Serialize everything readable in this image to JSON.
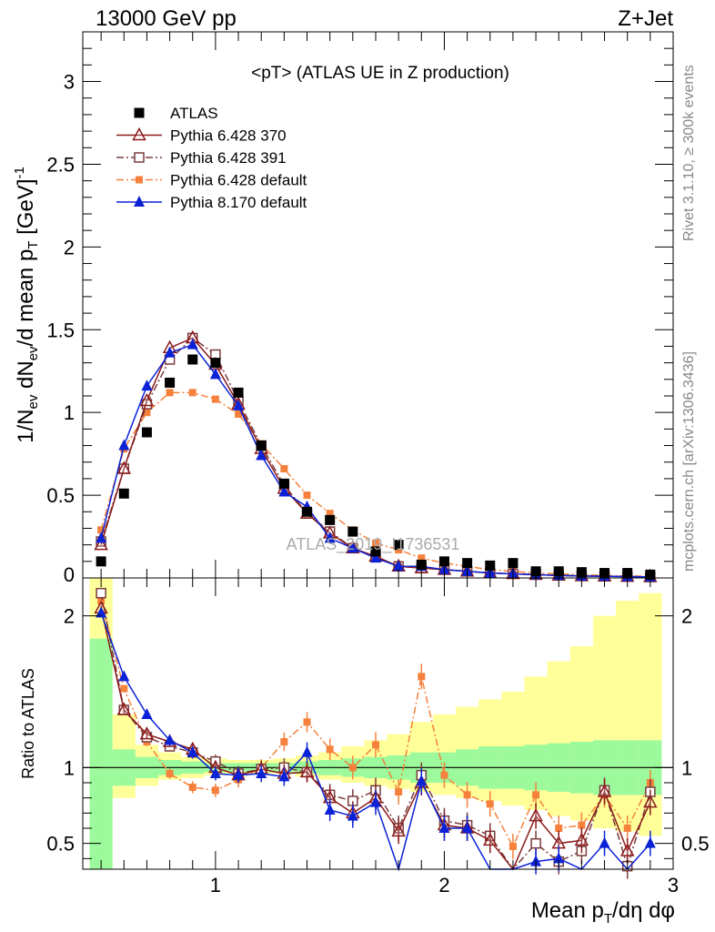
{
  "header": {
    "left": "13000 GeV pp",
    "right": "Z+Jet"
  },
  "side": {
    "rivet": "Rivet 3.1.10, ≥ 300k events",
    "mcplots": "mcplots.cern.ch [arXiv:1306.3436]"
  },
  "watermark": "ATLAS_2019_I1736531",
  "chart_data": [
    {
      "type": "scatter",
      "title": "<pT> (ATLAS UE in Z production)",
      "xlabel": "Mean p_T/dη dφ",
      "ylabel": "1/N_ev dN_ev/d mean p_T [GeV]^-1",
      "xlim": [
        0.42,
        3.0
      ],
      "ylim": [
        0,
        3.3
      ],
      "x_ticks": [
        "1",
        "2",
        "3"
      ],
      "y_ticks": [
        "0",
        "0.5",
        "1",
        "1.5",
        "2",
        "2.5",
        "3"
      ],
      "legend_position": "top-left",
      "x": [
        0.5,
        0.6,
        0.7,
        0.8,
        0.9,
        1.0,
        1.1,
        1.2,
        1.3,
        1.4,
        1.5,
        1.6,
        1.7,
        1.8,
        1.9,
        2.0,
        2.1,
        2.2,
        2.3,
        2.4,
        2.5,
        2.6,
        2.7,
        2.8,
        2.9
      ],
      "series": [
        {
          "name": "ATLAS",
          "color": "#000000",
          "marker": "square-filled",
          "line": "none",
          "values": [
            0.1,
            0.51,
            0.88,
            1.18,
            1.32,
            1.3,
            1.12,
            0.8,
            0.57,
            0.4,
            0.35,
            0.28,
            0.16,
            0.2,
            0.08,
            0.1,
            0.09,
            0.075,
            0.09,
            0.04,
            0.04,
            0.035,
            0.03,
            0.03,
            0.02
          ]
        },
        {
          "name": "Pythia 6.428 370",
          "color": "#8b1a1a",
          "marker": "triangle-open",
          "line": "solid",
          "values": [
            0.2,
            0.66,
            1.07,
            1.39,
            1.45,
            1.29,
            1.05,
            0.78,
            0.54,
            0.39,
            0.27,
            0.18,
            0.13,
            0.07,
            0.06,
            0.05,
            0.04,
            0.03,
            0.025,
            0.02,
            0.015,
            0.012,
            0.01,
            0.008,
            0.006
          ]
        },
        {
          "name": "Pythia 6.428 391",
          "color": "#7a3b3b",
          "marker": "square-open",
          "line": "dashdot",
          "values": [
            0.22,
            0.66,
            1.05,
            1.32,
            1.45,
            1.35,
            1.07,
            0.8,
            0.56,
            0.39,
            0.28,
            0.18,
            0.13,
            0.07,
            0.06,
            0.05,
            0.04,
            0.03,
            0.025,
            0.02,
            0.015,
            0.012,
            0.01,
            0.008,
            0.006
          ]
        },
        {
          "name": "Pythia 6.428 default",
          "color": "#f5813c",
          "marker": "square-filled-small",
          "line": "dashdot",
          "values": [
            0.29,
            0.78,
            1.0,
            1.12,
            1.12,
            1.08,
            0.99,
            0.81,
            0.66,
            0.5,
            0.39,
            0.29,
            0.21,
            0.17,
            0.12,
            0.09,
            0.07,
            0.05,
            0.04,
            0.03,
            0.025,
            0.02,
            0.015,
            0.012,
            0.01
          ]
        },
        {
          "name": "Pythia 8.170 default",
          "color": "#0b22d6",
          "marker": "triangle-filled",
          "line": "solid",
          "values": [
            0.24,
            0.8,
            1.16,
            1.36,
            1.41,
            1.23,
            1.04,
            0.74,
            0.52,
            0.43,
            0.24,
            0.18,
            0.12,
            0.07,
            0.07,
            0.05,
            0.04,
            0.03,
            0.025,
            0.02,
            0.015,
            0.012,
            0.01,
            0.008,
            0.006
          ]
        }
      ]
    },
    {
      "type": "line",
      "ylabel": "Ratio to ATLAS",
      "xlabel": "Mean p_T/dη dφ",
      "xlim": [
        0.42,
        3.0
      ],
      "ylim": [
        0.33,
        2.25
      ],
      "y_ticks": [
        "0.5",
        "1",
        "2"
      ],
      "x": [
        0.5,
        0.6,
        0.7,
        0.8,
        0.9,
        1.0,
        1.1,
        1.2,
        1.3,
        1.4,
        1.5,
        1.6,
        1.7,
        1.8,
        1.9,
        2.0,
        2.1,
        2.2,
        2.3,
        2.4,
        2.5,
        2.6,
        2.7,
        2.8,
        2.9
      ],
      "band_bins": [
        0.45,
        0.55,
        0.65,
        0.75,
        0.85,
        0.95,
        1.05,
        1.15,
        1.25,
        1.35,
        1.45,
        1.55,
        1.65,
        1.75,
        1.85,
        1.95,
        2.05,
        2.15,
        2.25,
        2.35,
        2.45,
        2.55,
        2.65,
        2.75,
        2.85,
        2.95
      ],
      "stat_band": {
        "color": "#9cfa9c",
        "lo": [
          0.33,
          0.88,
          0.93,
          0.95,
          0.96,
          0.97,
          0.97,
          0.97,
          0.97,
          0.96,
          0.95,
          0.94,
          0.93,
          0.92,
          0.9,
          0.9,
          0.88,
          0.86,
          0.86,
          0.85,
          0.84,
          0.83,
          0.82,
          0.82,
          0.82
        ],
        "hi": [
          1.85,
          1.12,
          1.07,
          1.05,
          1.04,
          1.03,
          1.03,
          1.03,
          1.03,
          1.04,
          1.05,
          1.06,
          1.07,
          1.08,
          1.1,
          1.1,
          1.12,
          1.14,
          1.14,
          1.15,
          1.16,
          1.17,
          1.18,
          1.18,
          1.18
        ]
      },
      "syst_band": {
        "color": "#ffff99",
        "lo": [
          0.33,
          0.8,
          0.88,
          0.92,
          0.93,
          0.95,
          0.96,
          0.96,
          0.96,
          0.94,
          0.92,
          0.9,
          0.88,
          0.86,
          0.84,
          0.82,
          0.8,
          0.78,
          0.75,
          0.72,
          0.68,
          0.65,
          0.6,
          0.58,
          0.55
        ],
        "hi": [
          2.25,
          1.35,
          1.15,
          1.1,
          1.07,
          1.06,
          1.05,
          1.05,
          1.06,
          1.08,
          1.1,
          1.14,
          1.18,
          1.22,
          1.3,
          1.35,
          1.4,
          1.45,
          1.5,
          1.6,
          1.7,
          1.8,
          2.0,
          2.1,
          2.15
        ]
      },
      "series": [
        {
          "name": "Pythia 6.428 370",
          "color": "#8b1a1a",
          "values": [
            2.05,
            1.38,
            1.22,
            1.17,
            1.12,
            1.0,
            0.95,
            0.99,
            0.96,
            0.97,
            0.8,
            0.7,
            0.8,
            0.58,
            0.9,
            0.62,
            0.6,
            0.52,
            0.3,
            0.68,
            0.5,
            0.52,
            0.84,
            0.45,
            0.77
          ]
        },
        {
          "name": "Pythia 6.428 391",
          "color": "#7a3b3b",
          "values": [
            2.15,
            1.38,
            1.2,
            1.14,
            1.1,
            1.04,
            0.96,
            0.99,
            1.0,
            0.97,
            0.82,
            0.78,
            0.85,
            0.6,
            0.95,
            0.65,
            0.62,
            0.55,
            0.3,
            0.5,
            0.38,
            0.45,
            0.85,
            0.35,
            0.84
          ]
        },
        {
          "name": "Pythia 6.428 default",
          "color": "#f5813c",
          "values": [
            2.1,
            1.52,
            1.17,
            0.96,
            0.87,
            0.85,
            0.92,
            1.0,
            1.17,
            1.3,
            1.12,
            1.0,
            1.15,
            0.84,
            1.6,
            0.95,
            0.82,
            0.76,
            0.48,
            0.82,
            0.6,
            0.62,
            0.82,
            0.6,
            0.9
          ]
        },
        {
          "name": "Pythia 8.170 default",
          "color": "#0b22d6",
          "values": [
            2.02,
            1.6,
            1.35,
            1.18,
            1.1,
            0.96,
            0.95,
            0.96,
            0.94,
            1.1,
            0.72,
            0.68,
            0.77,
            0.33,
            0.91,
            0.6,
            0.6,
            0.33,
            0.3,
            0.38,
            0.4,
            0.3,
            0.5,
            0.3,
            0.5
          ]
        }
      ]
    }
  ]
}
